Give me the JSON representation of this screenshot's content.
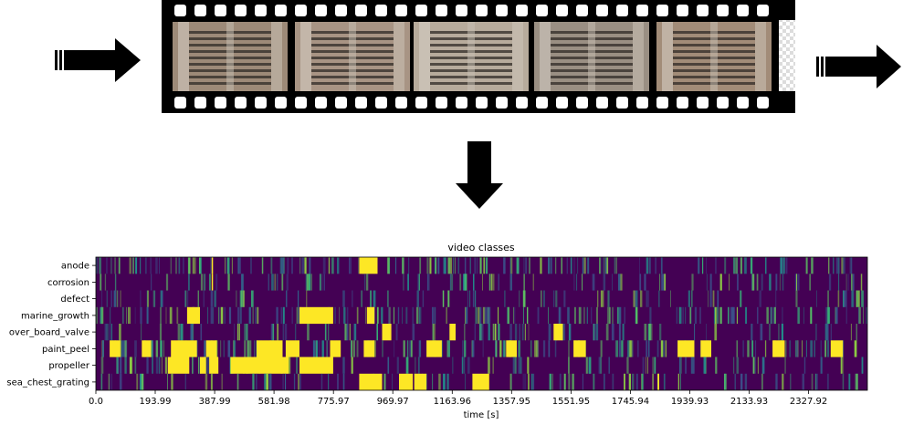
{
  "diagram": {
    "frames": [
      {
        "name": "frame-1",
        "tone": "#9d8a78"
      },
      {
        "name": "frame-2",
        "tone": "#a89484"
      },
      {
        "name": "frame-3",
        "tone": "#b7ab9c"
      },
      {
        "name": "frame-4",
        "tone": "#9a8f83"
      },
      {
        "name": "frame-5",
        "tone": "#a28c78"
      }
    ],
    "arrows": [
      "input-arrow",
      "output-arrow",
      "down-arrow"
    ]
  },
  "chart_data": {
    "type": "heatmap",
    "title": "video classes",
    "xlabel": "time [s]",
    "ylabel": "",
    "classes": [
      "anode",
      "corrosion",
      "defect",
      "marine_growth",
      "over_board_valve",
      "paint_peel",
      "propeller",
      "sea_chest_grating"
    ],
    "x_ticks": [
      "0.0",
      "193.99",
      "387.99",
      "581.98",
      "775.97",
      "969.97",
      "1163.96",
      "1357.95",
      "1551.95",
      "1745.94",
      "1939.93",
      "2133.93",
      "2327.92"
    ],
    "x_tick_values": [
      0.0,
      193.99,
      387.99,
      581.98,
      775.97,
      969.97,
      1163.96,
      1357.95,
      1551.95,
      1745.94,
      1939.93,
      2133.93,
      2327.92
    ],
    "xlim": [
      0,
      2520
    ],
    "colormap": "viridis",
    "high_segments": {
      "anode": [
        [
          860,
          920
        ],
        [
          378,
          382
        ]
      ],
      "corrosion": [
        [
          378,
          382
        ]
      ],
      "defect": [],
      "marine_growth": [
        [
          298,
          340
        ],
        [
          665,
          775
        ],
        [
          885,
          910
        ]
      ],
      "over_board_valve": [
        [
          935,
          965
        ],
        [
          1155,
          1175
        ],
        [
          1495,
          1525
        ]
      ],
      "paint_peel": [
        [
          45,
          80
        ],
        [
          150,
          180
        ],
        [
          245,
          330
        ],
        [
          360,
          395
        ],
        [
          525,
          610
        ],
        [
          620,
          665
        ],
        [
          765,
          800
        ],
        [
          875,
          910
        ],
        [
          1080,
          1130
        ],
        [
          1340,
          1375
        ],
        [
          1560,
          1600
        ],
        [
          1900,
          1955
        ],
        [
          1975,
          2010
        ],
        [
          2210,
          2250
        ],
        [
          2400,
          2440
        ]
      ],
      "propeller": [
        [
          235,
          305
        ],
        [
          340,
          360
        ],
        [
          370,
          400
        ],
        [
          440,
          630
        ],
        [
          665,
          775
        ]
      ],
      "sea_chest_grating": [
        [
          860,
          935
        ],
        [
          990,
          1035
        ],
        [
          1040,
          1080
        ],
        [
          1230,
          1285
        ],
        [
          1835,
          1840
        ]
      ]
    }
  }
}
